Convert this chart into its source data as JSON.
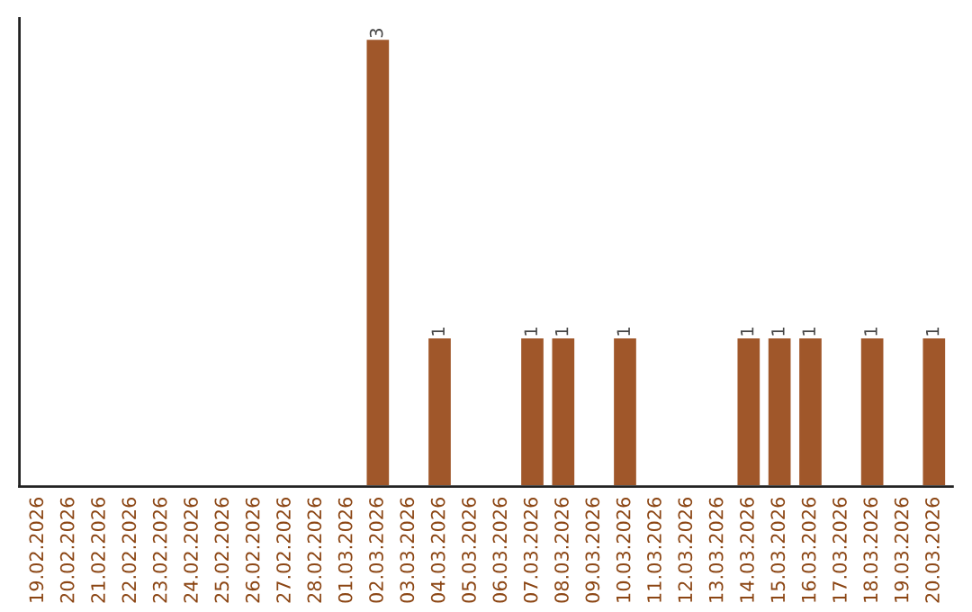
{
  "chart_data": {
    "type": "bar",
    "categories": [
      "19.02.2026",
      "20.02.2026",
      "21.02.2026",
      "22.02.2026",
      "23.02.2026",
      "24.02.2026",
      "25.02.2026",
      "26.02.2026",
      "27.02.2026",
      "28.02.2026",
      "01.03.2026",
      "02.03.2026",
      "03.03.2026",
      "04.03.2026",
      "05.03.2026",
      "06.03.2026",
      "07.03.2026",
      "08.03.2026",
      "09.03.2026",
      "10.03.2026",
      "11.03.2026",
      "12.03.2026",
      "13.03.2026",
      "14.03.2026",
      "15.03.2026",
      "16.03.2026",
      "17.03.2026",
      "18.03.2026",
      "19.03.2026",
      "20.03.2026"
    ],
    "values": [
      null,
      null,
      null,
      null,
      null,
      null,
      null,
      null,
      null,
      null,
      null,
      3,
      null,
      1,
      null,
      null,
      1,
      1,
      null,
      1,
      null,
      null,
      null,
      1,
      1,
      1,
      null,
      1,
      null,
      1
    ],
    "value_labels": [
      null,
      null,
      null,
      null,
      null,
      null,
      null,
      null,
      null,
      null,
      null,
      "3",
      null,
      "1",
      null,
      null,
      "1",
      "1",
      null,
      "1",
      null,
      null,
      null,
      "1",
      "1",
      "1",
      null,
      "1",
      null,
      "1"
    ],
    "color": "#a0572a",
    "grid": false,
    "legend": false,
    "tick_labels": "x"
  }
}
